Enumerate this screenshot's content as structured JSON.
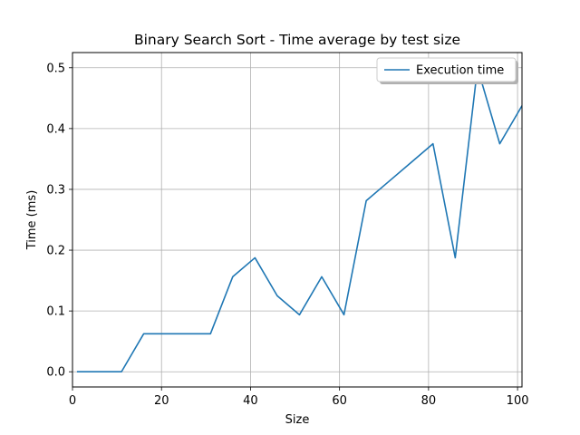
{
  "chart_data": {
    "type": "line",
    "title": "Binary Search Sort - Time average by test size",
    "xlabel": "Size",
    "ylabel": "Time (ms)",
    "xlim": [
      0,
      101
    ],
    "ylim": [
      -0.025,
      0.525
    ],
    "xticks": [
      0,
      20,
      40,
      60,
      80,
      100
    ],
    "xtick_labels": [
      "0",
      "20",
      "40",
      "60",
      "80",
      "100"
    ],
    "yticks": [
      0.0,
      0.1,
      0.2,
      0.3,
      0.4,
      0.5
    ],
    "ytick_labels": [
      "0.0",
      "0.1",
      "0.2",
      "0.3",
      "0.4",
      "0.5"
    ],
    "grid": true,
    "legend_position": "upper right",
    "series": [
      {
        "name": "Execution time",
        "color": "#1f77b4",
        "x": [
          1,
          6,
          11,
          16,
          21,
          26,
          31,
          36,
          41,
          46,
          51,
          56,
          61,
          66,
          71,
          76,
          81,
          86,
          91,
          96,
          101
        ],
        "y": [
          0.0,
          0.0,
          0.0,
          0.0625,
          0.0625,
          0.0625,
          0.0625,
          0.15625,
          0.1875,
          0.125,
          0.09375,
          0.15625,
          0.09375,
          0.28125,
          0.3125,
          0.34375,
          0.375,
          0.1875,
          0.5,
          0.375,
          0.4375
        ]
      }
    ]
  }
}
